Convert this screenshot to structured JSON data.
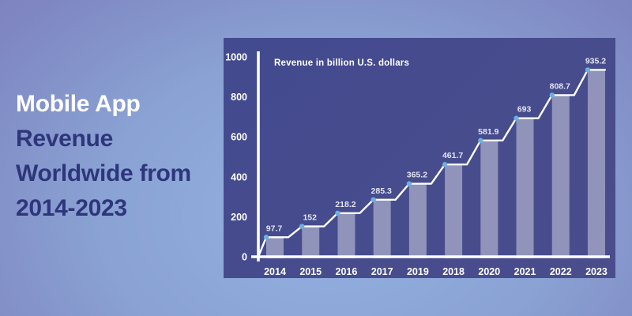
{
  "headline": {
    "line1": "Mobile App",
    "line2": "Revenue",
    "line3": "Worldwide from",
    "line4": "2014-2023",
    "line1_color": "#ffffff",
    "rest_color": "#2e367b"
  },
  "chart_data": {
    "type": "bar",
    "subtype": "bar-with-line-overlay",
    "title": "Revenue in billion U.S. dollars",
    "categories": [
      "2014",
      "2015",
      "2016",
      "2017",
      "2019",
      "2018",
      "2020",
      "2021",
      "2022",
      "2023"
    ],
    "values": [
      97.7,
      152,
      218.2,
      285.3,
      365.2,
      461.7,
      581.9,
      693,
      808.7,
      935.2
    ],
    "value_labels": [
      "97.7",
      "152",
      "218.2",
      "285.3",
      "365.2",
      "461.7",
      "581.9",
      "693",
      "808.7",
      "935.2"
    ],
    "y_ticks": [
      0,
      200,
      400,
      600,
      800,
      1000
    ],
    "ylim": [
      0,
      1000
    ],
    "xlabel": "",
    "ylabel": "",
    "grid": false,
    "legend": "none",
    "colors": {
      "panel": "#474c8d",
      "bar": "rgba(255,255,255,0.40)",
      "line": "#ffffff",
      "dot": "#6cb0e2",
      "axis": "#ffffff",
      "value_label": "#e2e4f2",
      "tick_label": "#ffffff",
      "background_center": "#93b1e1",
      "background_edge": "#7a78b6"
    }
  }
}
